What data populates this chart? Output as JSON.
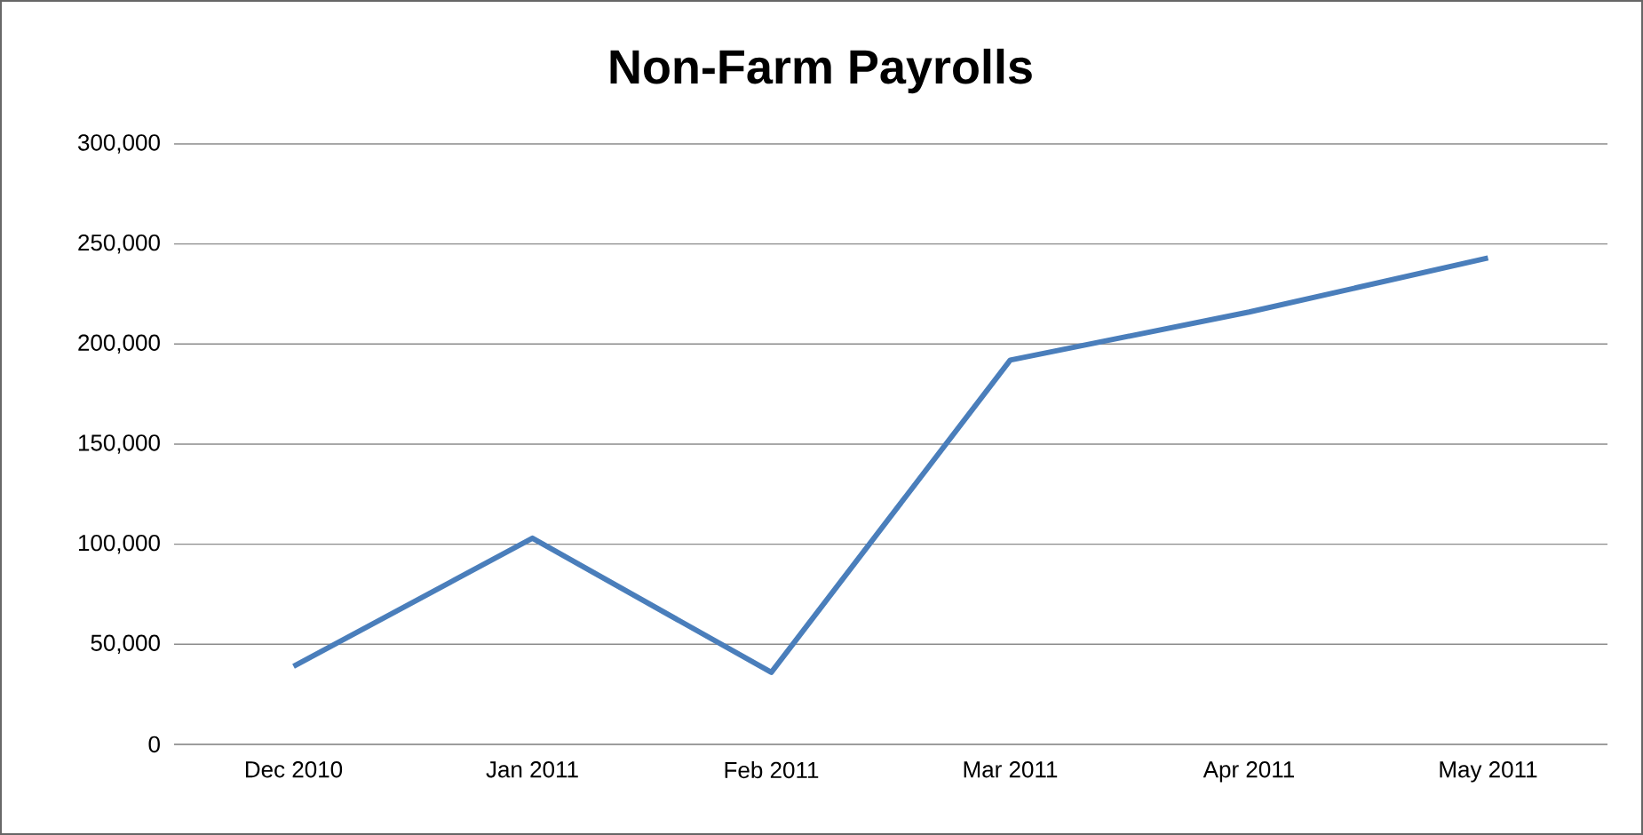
{
  "chart_data": {
    "type": "line",
    "title": "Non-Farm Payrolls",
    "categories": [
      "Dec 2010",
      "Jan 2011",
      "Feb 2011",
      "Mar 2011",
      "Apr 2011",
      "May 2011"
    ],
    "values": [
      39000,
      103000,
      36000,
      192000,
      216000,
      243000
    ],
    "color": "#4a7ebb",
    "ylim": [
      0,
      300000
    ],
    "yticks": [
      0,
      {
        "value": 50000,
        "label": "50,000"
      },
      {
        "value": 100000,
        "label": "100,000"
      },
      {
        "value": 150000,
        "label": "150,000"
      },
      {
        "value": 200000,
        "label": "200,000"
      },
      {
        "value": 250000,
        "label": "250,000"
      },
      {
        "value": 300000,
        "label": "300,000"
      }
    ],
    "grid": "y",
    "marker": "none",
    "line_style": "solid"
  }
}
